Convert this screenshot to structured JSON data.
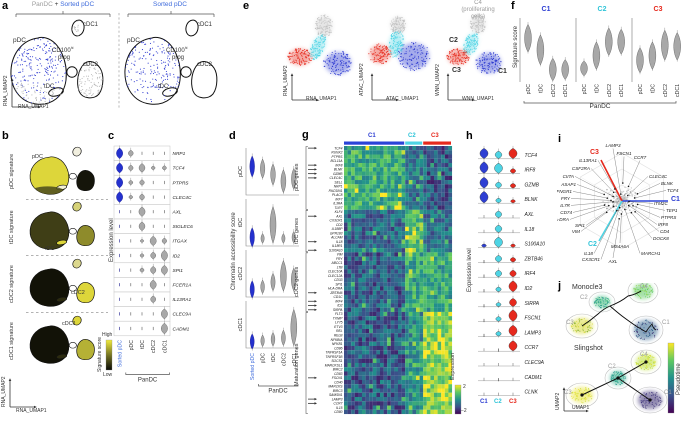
{
  "letters": {
    "a": "a",
    "b": "b",
    "c": "c",
    "d": "d",
    "e": "e",
    "f": "f",
    "g": "g",
    "h": "h",
    "i": "i",
    "j": "j"
  },
  "colors": {
    "cluster_blue": "#2e3fd3",
    "cluster_cyan": "#4ed4e4",
    "cluster_red": "#e6291d",
    "text_blue": "#3e6bdc",
    "gray_points": "#bcbcbc",
    "signature_yellow": "#ddd63a",
    "heatmap_bar_blue": "#2b43d8"
  },
  "panel_a": {
    "title_left": {
      "gray": "PanDC",
      "plus": " + ",
      "blue": "Sorted pDC"
    },
    "title_right": "Sorted pDC",
    "regions": {
      "pdc": "pDC",
      "cdc1": "cDC1",
      "cd100": "CD100",
      "hi": "hi",
      "prog": "prog",
      "cdc2": "cDC2",
      "tdc": "tDC"
    },
    "xlabel": "RNA_UMAP1",
    "ylabel": "RNA_UMAP2"
  },
  "panel_b": {
    "signatures": [
      "pDC signature",
      "tDC signature",
      "cDC2 signature",
      "cDC1 signature"
    ],
    "regions": [
      "pDC",
      "tDC",
      "cDC2",
      "cDC1"
    ],
    "colorbar": {
      "label": "Signature score",
      "low": "Low",
      "high": "High"
    },
    "xlabel": "RNA_UMAP1",
    "ylabel": "RNA_UMAP2"
  },
  "panel_e": {
    "plots": [
      {
        "xlabel": "RNA_UMAP1",
        "ylabel": "RNA_UMAP2"
      },
      {
        "xlabel": "ATAC_UMAP1",
        "ylabel": "ATAC_UMAP2"
      },
      {
        "xlabel": "WNN_UMAP1",
        "ylabel": "WNN_UMAP2"
      }
    ],
    "cluster_labels": {
      "c1": "C1",
      "c2": "C2",
      "c3": "C3"
    },
    "c4_annotation": "C4\n(proliferating\ncells)"
  },
  "panel_i": {
    "axes": {
      "c1": "C1",
      "c2": "C2",
      "c3": "C3"
    },
    "genes": [
      "LAMP3",
      "FSCN1",
      "CCR7",
      "IL13RA1",
      "CSF2RA",
      "CIITA",
      "CLEC4C",
      "ASAP1",
      "BLNK",
      "IFNGR1",
      "TCF4",
      "FRY",
      "IL7R",
      "ITM2C",
      "CD74",
      "TEP1",
      "HLA-DRA",
      "PTPRS",
      "SPI1",
      "IRF8",
      "VIM",
      "CD4",
      "DOCK8",
      "MS4A6A",
      "IL18",
      "MARCH1",
      "CX3CR1",
      "AXL"
    ]
  },
  "panel_j": {
    "monocle": "Monocle3",
    "slingshot": "Slingshot",
    "colorbar": "Pseudotime",
    "xlabel": "UMAP1",
    "ylabel": "UMAP2",
    "clusters": [
      "C1",
      "C2",
      "C3",
      "C4"
    ]
  },
  "chart_data": [
    {
      "id": "panel_c",
      "type": "violin",
      "ylabel": "Expression level",
      "group_label": "PanDC",
      "categories": [
        "Sorted pDC",
        "pDC",
        "tDC",
        "cDC2",
        "cDC1"
      ],
      "category_colors": [
        "#3e6bdc",
        "#333333",
        "#333333",
        "#333333",
        "#333333"
      ],
      "genes": [
        "NRP1",
        "TCF4",
        "PTPRS",
        "CLEC4C",
        "AXL",
        "SIGLEC6",
        "ITGAX",
        "ID2",
        "SPI1",
        "FCER1A",
        "IL13RA1",
        "CLEC9A",
        "CADM1"
      ],
      "values": [
        [
          0.85,
          0.5,
          0.12,
          0.08,
          0.08
        ],
        [
          0.8,
          0.45,
          0.7,
          0.3,
          0.35
        ],
        [
          0.85,
          0.35,
          0.45,
          0.08,
          0.08
        ],
        [
          0.85,
          0.3,
          0.5,
          0.05,
          0.05
        ],
        [
          0.05,
          0.1,
          0.75,
          0.08,
          0.08
        ],
        [
          0.05,
          0.08,
          0.7,
          0.05,
          0.05
        ],
        [
          0.05,
          0.05,
          0.25,
          0.75,
          0.45
        ],
        [
          0.05,
          0.05,
          0.3,
          0.55,
          0.85
        ],
        [
          0.08,
          0.1,
          0.35,
          0.6,
          0.75
        ],
        [
          0.05,
          0.05,
          0.1,
          0.75,
          0.15
        ],
        [
          0.05,
          0.05,
          0.1,
          0.55,
          0.1
        ],
        [
          0.05,
          0.05,
          0.05,
          0.08,
          0.8
        ],
        [
          0.05,
          0.05,
          0.05,
          0.1,
          0.85
        ]
      ]
    },
    {
      "id": "panel_d",
      "type": "violin",
      "ylabel": "Chromatin accessibility score",
      "group_label": "PanDC",
      "categories": [
        "Sorted pDC",
        "pDC",
        "tDC",
        "cDC2",
        "cDC1"
      ],
      "rows": [
        "pDC",
        "tDC",
        "cDC2",
        "cDC1"
      ],
      "sizes": [
        [
          0.55,
          0.5,
          0.55,
          0.6,
          0.55
        ],
        [
          0.5,
          0.25,
          0.95,
          0.25,
          0.3
        ],
        [
          0.45,
          0.35,
          0.45,
          0.8,
          0.6
        ],
        [
          0.4,
          0.3,
          0.35,
          0.4,
          0.95
        ]
      ],
      "centers": [
        [
          0.72,
          0.66,
          0.5,
          0.32,
          0.38
        ],
        [
          0.18,
          0.15,
          0.52,
          0.15,
          0.18
        ],
        [
          0.15,
          0.22,
          0.35,
          0.52,
          0.42
        ],
        [
          0.12,
          0.14,
          0.18,
          0.22,
          0.5
        ]
      ]
    },
    {
      "id": "panel_f",
      "type": "violin",
      "ylabel": "Signature score",
      "group_label": "PanDC",
      "categories": [
        "pDC",
        "tDC",
        "cDC2",
        "cDC1"
      ],
      "groups": [
        {
          "label": "C1",
          "color": "#2e3fd3",
          "centers": [
            0.72,
            0.52,
            0.18,
            0.18
          ],
          "sizes": [
            0.55,
            0.6,
            0.45,
            0.4
          ]
        },
        {
          "label": "C2",
          "color": "#3fc9dc",
          "centers": [
            0.2,
            0.42,
            0.66,
            0.66
          ],
          "sizes": [
            0.3,
            0.55,
            0.55,
            0.5
          ]
        },
        {
          "label": "C3",
          "color": "#e6291d",
          "centers": [
            0.34,
            0.42,
            0.6,
            0.58
          ],
          "sizes": [
            0.5,
            0.55,
            0.6,
            0.55
          ]
        }
      ]
    },
    {
      "id": "panel_g",
      "type": "heatmap",
      "row_groups": [
        {
          "label": "pDC genes",
          "genes": [
            "TCF4",
            "RUNX2",
            "PTPRS",
            "BCL11A",
            "IRF8",
            "BLNK",
            "GZMB",
            "CLEC4C",
            "SELL",
            "NRP1",
            "PACSIN1",
            "PLAC8",
            "IRF7",
            "IL3RA",
            "TLR7"
          ]
        },
        {
          "label": "tDC genes",
          "genes": [
            "KLF4",
            "AXL",
            "CX3CR1",
            "CD2",
            "IL18BP",
            "GPR183",
            "ALCAM",
            "IL18",
            "IL18R1",
            "S100A10"
          ]
        },
        {
          "label": "cDC2 genes",
          "genes": [
            "VIM",
            "FRY",
            "ABCC1",
            "LTB",
            "CLEC10A",
            "CLEC12A",
            "CD33",
            "SPI1",
            "HLA-DRA",
            "ZBTB46",
            "CD1C",
            "IRF4",
            "ID2",
            "SIRPA"
          ]
        },
        {
          "label": "Maturation genes",
          "genes": [
            "FLT3",
            "TXNIP",
            "LY75",
            "ETV3",
            "REL",
            "RELB",
            "NFKBIA",
            "NFKB1",
            "CD86",
            "TNFRSF1A",
            "TNFRSF1B",
            "SOCS1",
            "MARCKSL1",
            "BIRC2",
            "CD83",
            "FSCN1",
            "CD40",
            "MARCKS",
            "BIRC3",
            "SAMSN1",
            "LAMP3",
            "CCR7",
            "IL15",
            "CD80"
          ]
        }
      ],
      "arrow_genes": [
        "TCF4",
        "IRF8",
        "BLNK",
        "GZMB",
        "CLEC4C",
        "AXL",
        "IL18",
        "S100A10",
        "ZBTB46",
        "IRF4",
        "ID2",
        "SIRPA",
        "FSCN1",
        "LAMP3",
        "CCR7"
      ],
      "col_groups": [
        {
          "label": "C1",
          "color": "#2b43d8",
          "cols": 17
        },
        {
          "label": "C2",
          "color": "#4ed4e4",
          "cols": 5
        },
        {
          "label": "C3",
          "color": "#e6291d",
          "cols": 8
        }
      ],
      "intensity": [
        [
          0.62,
          0.4,
          0.28
        ],
        [
          0.35,
          0.72,
          0.4
        ],
        [
          0.3,
          0.6,
          0.6
        ],
        [
          0.3,
          0.5,
          0.82
        ]
      ],
      "colorbar": {
        "label": "Expression",
        "max": "2",
        "min": "−2"
      }
    },
    {
      "id": "panel_h",
      "type": "violin",
      "ylabel": "Expression level",
      "categories": [
        "C1",
        "C2",
        "C3"
      ],
      "category_colors": [
        "#2e3fd3",
        "#4ed4e4",
        "#e6291d"
      ],
      "genes": [
        "TCF4",
        "IRF8",
        "GZMB",
        "BLNK",
        "AXL",
        "IL18",
        "S100A10",
        "ZBTB46",
        "IRF4",
        "ID2",
        "SIRPA",
        "FSCN1",
        "LAMP3",
        "CCR7",
        "CLEC9A",
        "CADM1",
        "CLNK"
      ],
      "values": [
        [
          0.75,
          0.55,
          0.75
        ],
        [
          0.85,
          0.75,
          0.35
        ],
        [
          0.8,
          0.45,
          0.35
        ],
        [
          0.85,
          0.35,
          0.25
        ],
        [
          0.06,
          0.5,
          0.06
        ],
        [
          0.06,
          0.55,
          0.06
        ],
        [
          0.25,
          0.75,
          0.25
        ],
        [
          0.08,
          0.5,
          0.35
        ],
        [
          0.12,
          0.5,
          0.5
        ],
        [
          0.15,
          0.35,
          0.8
        ],
        [
          0.1,
          0.3,
          0.6
        ],
        [
          0.12,
          0.35,
          0.85
        ],
        [
          0.1,
          0.35,
          0.8
        ],
        [
          0.06,
          0.12,
          0.75
        ],
        [
          0.04,
          0.04,
          0.06
        ],
        [
          0.04,
          0.12,
          0.06
        ],
        [
          0.04,
          0.04,
          0.04
        ]
      ]
    }
  ]
}
